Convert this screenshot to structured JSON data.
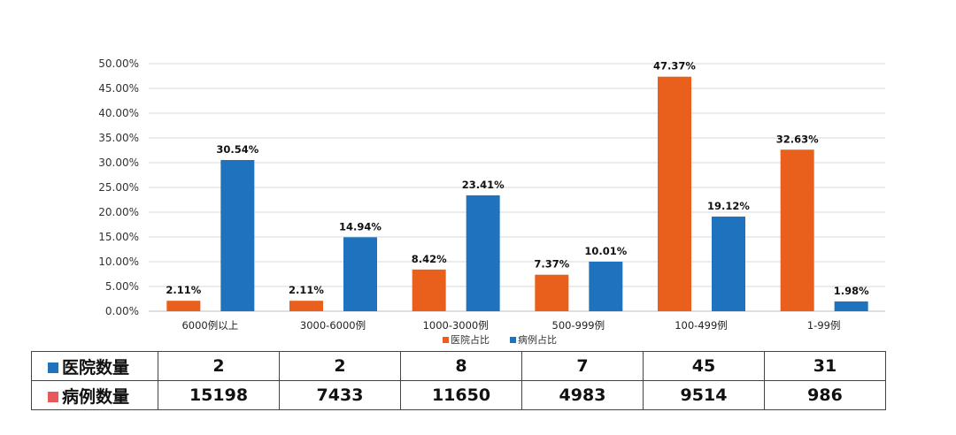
{
  "chart_data": {
    "type": "bar",
    "categories": [
      "6000例以上",
      "3000-6000例",
      "1000-3000例",
      "500-999例",
      "100-499例",
      "1-99例"
    ],
    "series": [
      {
        "name": "医院占比",
        "color": "#e8601c",
        "values": [
          2.11,
          2.11,
          8.42,
          7.37,
          47.37,
          32.63
        ],
        "labels": [
          "2.11%",
          "2.11%",
          "8.42%",
          "7.37%",
          "47.37%",
          "32.63%"
        ]
      },
      {
        "name": "病例占比",
        "color": "#1f73be",
        "values": [
          30.54,
          14.94,
          23.41,
          10.01,
          19.12,
          1.98
        ],
        "labels": [
          "30.54%",
          "14.94%",
          "23.41%",
          "10.01%",
          "19.12%",
          "1.98%"
        ]
      }
    ],
    "ylim": [
      0,
      50
    ],
    "yticks": [
      "0.00%",
      "5.00%",
      "10.00%",
      "15.00%",
      "20.00%",
      "25.00%",
      "30.00%",
      "35.00%",
      "40.00%",
      "45.00%",
      "50.00%"
    ],
    "grid": true,
    "legend": "bottom-center",
    "title": "",
    "xlabel": "",
    "ylabel": ""
  },
  "table": {
    "rows": [
      {
        "label": "医院数量",
        "marker_color": "#1f73be",
        "values": [
          "2",
          "2",
          "8",
          "7",
          "45",
          "31"
        ]
      },
      {
        "label": "病例数量",
        "marker_color": "#e85a5a",
        "values": [
          "15198",
          "7433",
          "11650",
          "4983",
          "9514",
          "986"
        ]
      }
    ]
  }
}
